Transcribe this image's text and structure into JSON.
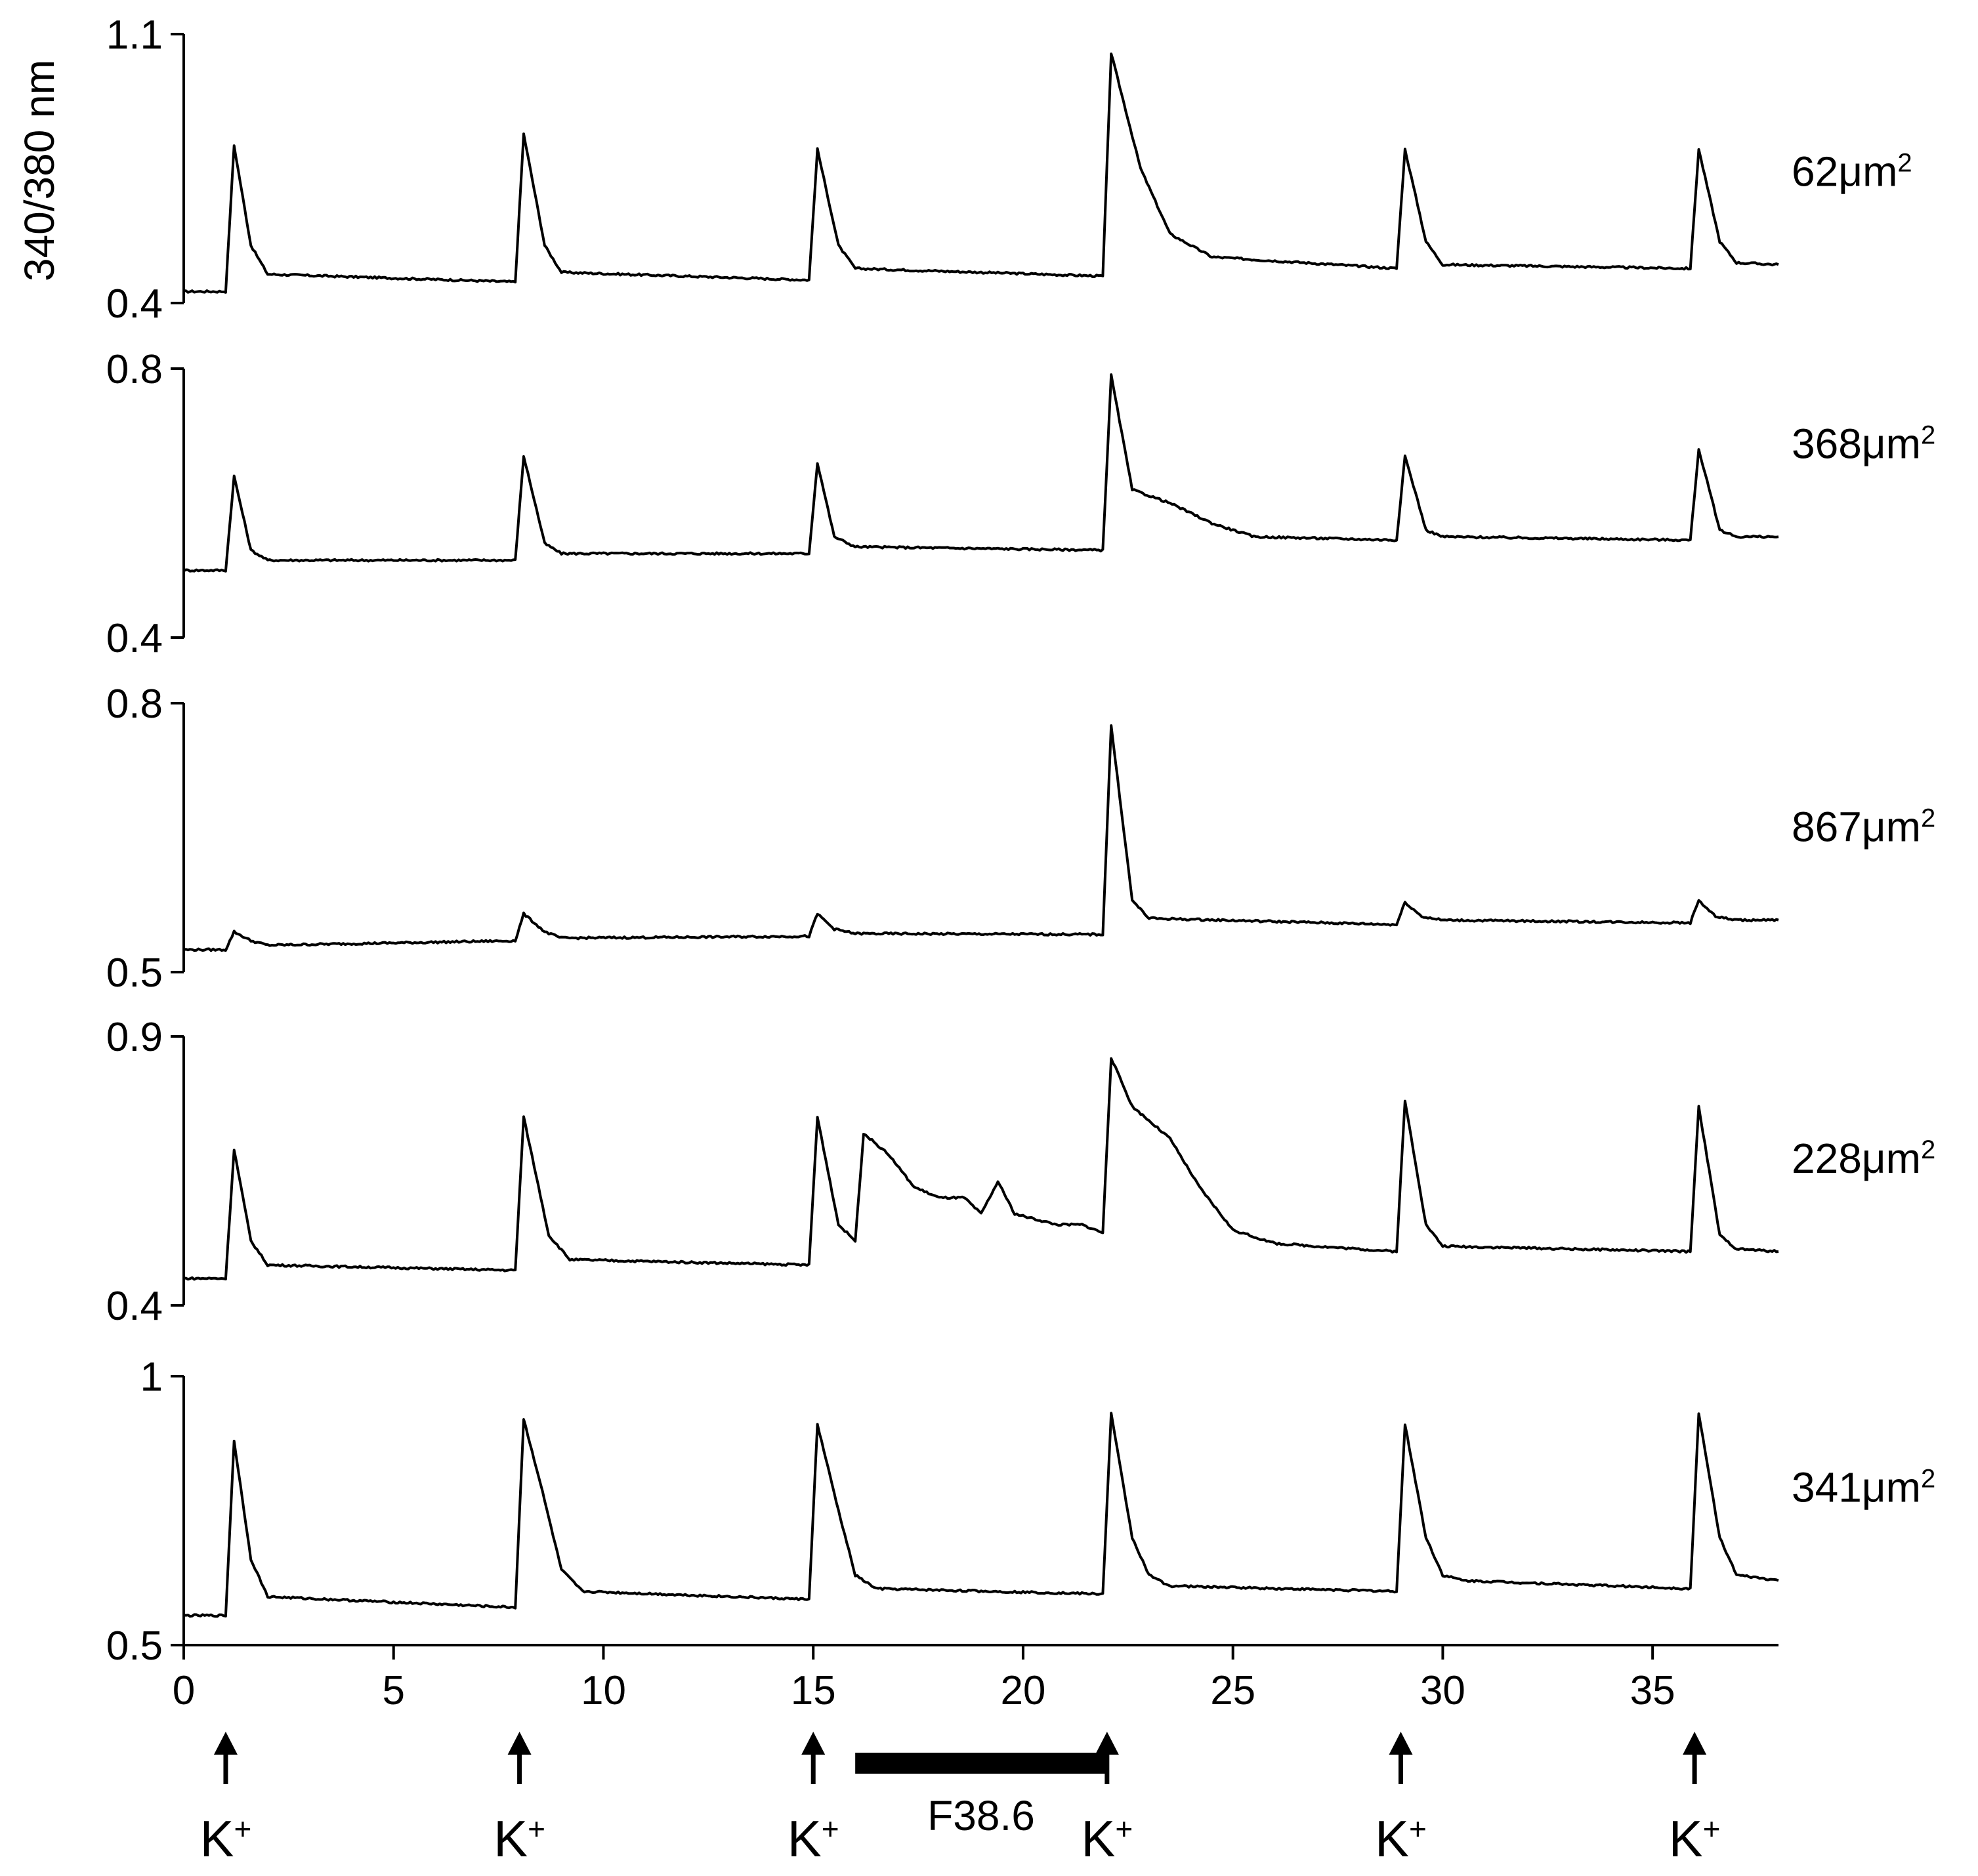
{
  "figure": {
    "ylabel": "340/380 nm",
    "stim_label": "K+",
    "drug_label": "F38.6"
  },
  "chart_data": {
    "type": "line",
    "x_axis": {
      "range": [
        0,
        38
      ],
      "ticks": [
        0,
        5,
        10,
        15,
        20,
        25,
        30,
        35
      ],
      "label": ""
    },
    "stimuli_times": [
      1,
      8,
      15,
      22,
      29,
      36
    ],
    "drug_application": {
      "label": "F38.6",
      "start": 16,
      "end": 22
    },
    "panels": [
      {
        "name": "62μm2",
        "name_base": "62μm",
        "name_sup": "2",
        "ylim": [
          0.4,
          1.1
        ],
        "yticks": [
          0.4,
          1.1
        ],
        "baseline": 0.43,
        "end_value": 0.5,
        "series": [
          [
            0,
            0.43
          ],
          [
            1,
            0.43
          ],
          [
            1.2,
            0.81
          ],
          [
            1.6,
            0.55
          ],
          [
            2.0,
            0.475
          ],
          [
            7.9,
            0.455
          ],
          [
            8.1,
            0.84
          ],
          [
            8.6,
            0.55
          ],
          [
            9.0,
            0.48
          ],
          [
            14.9,
            0.46
          ],
          [
            15.1,
            0.8
          ],
          [
            15.6,
            0.55
          ],
          [
            16.0,
            0.49
          ],
          [
            21.9,
            0.47
          ],
          [
            22.1,
            1.05
          ],
          [
            22.8,
            0.75
          ],
          [
            23.5,
            0.58
          ],
          [
            24.5,
            0.52
          ],
          [
            28.9,
            0.49
          ],
          [
            29.1,
            0.8
          ],
          [
            29.6,
            0.56
          ],
          [
            30.0,
            0.5
          ],
          [
            35.9,
            0.49
          ],
          [
            36.1,
            0.8
          ],
          [
            36.6,
            0.56
          ],
          [
            37,
            0.505
          ],
          [
            38,
            0.5
          ]
        ]
      },
      {
        "name": "368μm2",
        "name_base": "368μm",
        "name_sup": "2",
        "ylim": [
          0.4,
          0.8
        ],
        "yticks": [
          0.4,
          0.8
        ],
        "baseline": 0.5,
        "end_value": 0.55,
        "series": [
          [
            0,
            0.5
          ],
          [
            1,
            0.5
          ],
          [
            1.2,
            0.64
          ],
          [
            1.6,
            0.53
          ],
          [
            2,
            0.515
          ],
          [
            7.9,
            0.515
          ],
          [
            8.1,
            0.67
          ],
          [
            8.6,
            0.54
          ],
          [
            9,
            0.525
          ],
          [
            14.9,
            0.525
          ],
          [
            15.1,
            0.66
          ],
          [
            15.5,
            0.55
          ],
          [
            16,
            0.535
          ],
          [
            21.9,
            0.53
          ],
          [
            22.1,
            0.79
          ],
          [
            22.6,
            0.62
          ],
          [
            23.5,
            0.6
          ],
          [
            24.5,
            0.57
          ],
          [
            25.5,
            0.55
          ],
          [
            28.9,
            0.545
          ],
          [
            29.1,
            0.67
          ],
          [
            29.6,
            0.56
          ],
          [
            30,
            0.55
          ],
          [
            35.9,
            0.545
          ],
          [
            36.1,
            0.68
          ],
          [
            36.6,
            0.56
          ],
          [
            37,
            0.55
          ],
          [
            38,
            0.55
          ]
        ]
      },
      {
        "name": "867μm2",
        "name_base": "867μm",
        "name_sup": "2",
        "ylim": [
          0.5,
          0.8
        ],
        "yticks": [
          0.5,
          0.8
        ],
        "baseline": 0.525,
        "end_value": 0.558,
        "series": [
          [
            0,
            0.525
          ],
          [
            1,
            0.525
          ],
          [
            1.2,
            0.545
          ],
          [
            1.6,
            0.535
          ],
          [
            2,
            0.53
          ],
          [
            7.9,
            0.535
          ],
          [
            8.1,
            0.565
          ],
          [
            8.6,
            0.545
          ],
          [
            9,
            0.538
          ],
          [
            14.9,
            0.54
          ],
          [
            15.1,
            0.565
          ],
          [
            15.5,
            0.548
          ],
          [
            16,
            0.543
          ],
          [
            21.9,
            0.542
          ],
          [
            22.1,
            0.775
          ],
          [
            22.6,
            0.58
          ],
          [
            23,
            0.56
          ],
          [
            28.9,
            0.553
          ],
          [
            29.1,
            0.578
          ],
          [
            29.5,
            0.562
          ],
          [
            30,
            0.558
          ],
          [
            35.9,
            0.555
          ],
          [
            36.1,
            0.58
          ],
          [
            36.5,
            0.562
          ],
          [
            37,
            0.558
          ],
          [
            38,
            0.558
          ]
        ]
      },
      {
        "name": "228μm2",
        "name_base": "228μm",
        "name_sup": "2",
        "ylim": [
          0.4,
          0.9
        ],
        "yticks": [
          0.4,
          0.9
        ],
        "baseline": 0.45,
        "end_value": 0.5,
        "series": [
          [
            0,
            0.45
          ],
          [
            1,
            0.45
          ],
          [
            1.2,
            0.69
          ],
          [
            1.6,
            0.52
          ],
          [
            2,
            0.475
          ],
          [
            7.9,
            0.465
          ],
          [
            8.1,
            0.75
          ],
          [
            8.7,
            0.53
          ],
          [
            9.2,
            0.485
          ],
          [
            14.9,
            0.475
          ],
          [
            15.1,
            0.75
          ],
          [
            15.6,
            0.55
          ],
          [
            16.0,
            0.52
          ],
          [
            16.2,
            0.72
          ],
          [
            16.8,
            0.68
          ],
          [
            17.4,
            0.62
          ],
          [
            18.0,
            0.6
          ],
          [
            18.6,
            0.6
          ],
          [
            19.0,
            0.57
          ],
          [
            19.4,
            0.63
          ],
          [
            19.8,
            0.57
          ],
          [
            20.3,
            0.56
          ],
          [
            20.8,
            0.55
          ],
          [
            21.4,
            0.55
          ],
          [
            21.9,
            0.535
          ],
          [
            22.1,
            0.86
          ],
          [
            22.6,
            0.77
          ],
          [
            23.5,
            0.71
          ],
          [
            24.2,
            0.62
          ],
          [
            25,
            0.54
          ],
          [
            26,
            0.515
          ],
          [
            28.9,
            0.5
          ],
          [
            29.1,
            0.78
          ],
          [
            29.6,
            0.55
          ],
          [
            30,
            0.51
          ],
          [
            35.9,
            0.5
          ],
          [
            36.1,
            0.77
          ],
          [
            36.6,
            0.53
          ],
          [
            37,
            0.505
          ],
          [
            38,
            0.5
          ]
        ]
      },
      {
        "name": "341μm2",
        "name_base": "341μm",
        "name_sup": "2",
        "ylim": [
          0.5,
          1
        ],
        "yticks": [
          0.5,
          1
        ],
        "baseline": 0.555,
        "end_value": 0.62,
        "series": [
          [
            0,
            0.555
          ],
          [
            1,
            0.555
          ],
          [
            1.2,
            0.88
          ],
          [
            1.6,
            0.66
          ],
          [
            2,
            0.59
          ],
          [
            7.9,
            0.57
          ],
          [
            8.1,
            0.92
          ],
          [
            8.5,
            0.8
          ],
          [
            9,
            0.64
          ],
          [
            9.5,
            0.6
          ],
          [
            14.9,
            0.585
          ],
          [
            15.1,
            0.91
          ],
          [
            15.6,
            0.75
          ],
          [
            16,
            0.63
          ],
          [
            16.5,
            0.605
          ],
          [
            21.9,
            0.595
          ],
          [
            22.1,
            0.93
          ],
          [
            22.6,
            0.7
          ],
          [
            23,
            0.63
          ],
          [
            23.5,
            0.61
          ],
          [
            28.9,
            0.6
          ],
          [
            29.1,
            0.91
          ],
          [
            29.6,
            0.7
          ],
          [
            30,
            0.63
          ],
          [
            30.5,
            0.62
          ],
          [
            35.9,
            0.605
          ],
          [
            36.1,
            0.93
          ],
          [
            36.6,
            0.7
          ],
          [
            37,
            0.63
          ],
          [
            38,
            0.62
          ]
        ]
      }
    ]
  }
}
